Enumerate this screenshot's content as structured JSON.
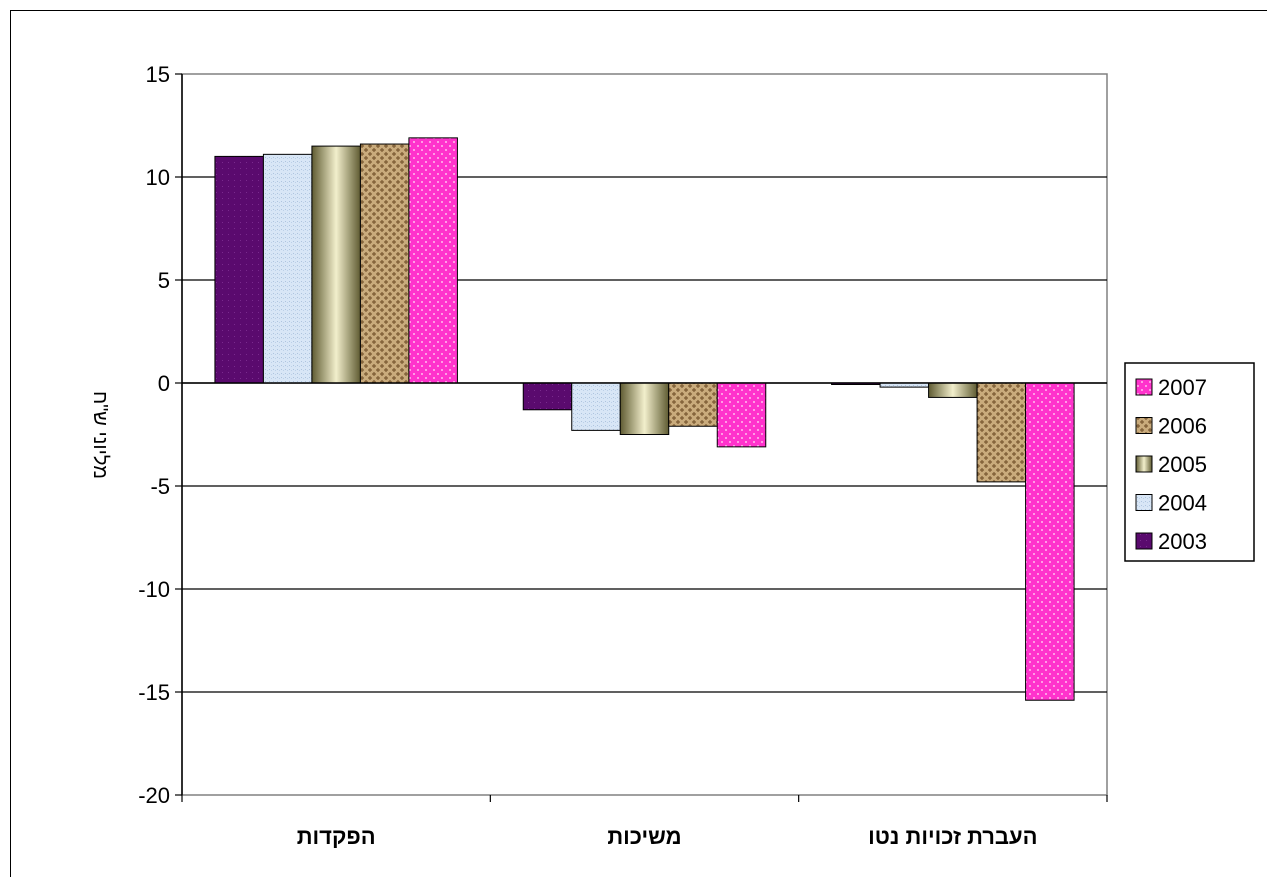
{
  "chart_data": {
    "type": "bar",
    "categories": [
      "הפקדות",
      "משיכות",
      "העברת זכויות נטו"
    ],
    "ylabel": "מליוני ש\"ח",
    "ylim": [
      -20,
      15
    ],
    "yticks": [
      "15",
      "10",
      "5",
      "0",
      "-5",
      "-10",
      "-15",
      "-20"
    ],
    "ytick_values": [
      15,
      10,
      5,
      0,
      -5,
      -10,
      -15,
      -20
    ],
    "grid": true,
    "legend_position": "right",
    "series": [
      {
        "name": "2003",
        "color": "#5a0a6e",
        "values": [
          11.0,
          -1.3,
          -0.05
        ]
      },
      {
        "name": "2004",
        "color": "#cfe0f4",
        "values": [
          11.1,
          -2.3,
          -0.2
        ]
      },
      {
        "name": "2005",
        "color": "#8f8a58",
        "values": [
          11.5,
          -2.5,
          -0.7
        ]
      },
      {
        "name": "2006",
        "color": "#b89a6a",
        "values": [
          11.6,
          -2.1,
          -4.8
        ]
      },
      {
        "name": "2007",
        "color": "#ff33cc",
        "values": [
          11.9,
          -3.1,
          -15.4
        ]
      }
    ],
    "legend_order": [
      "2007",
      "2006",
      "2005",
      "2004",
      "2003"
    ]
  }
}
